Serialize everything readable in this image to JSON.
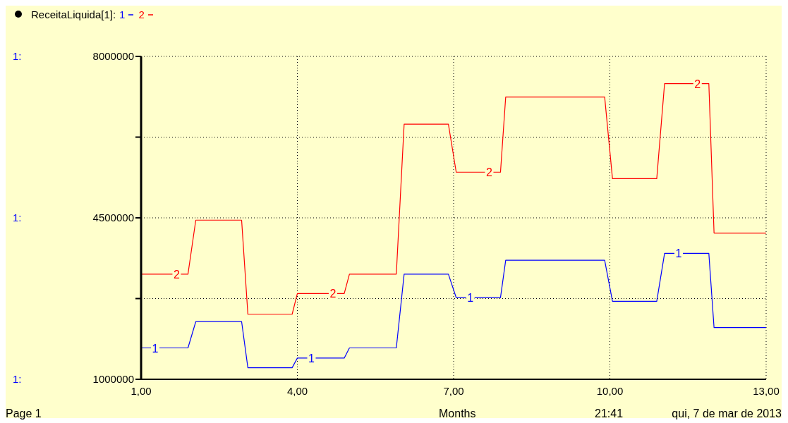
{
  "chart_data": {
    "type": "step",
    "title": "ReceitaLiquida[1]:",
    "xlabel": "Months",
    "series": [
      {
        "name": "1",
        "color": "#0000ff",
        "x": [
          1,
          1.9,
          2.05,
          2.93,
          3.05,
          3.9,
          4.0,
          4.9,
          5.0,
          5.9,
          6.05,
          6.9,
          7.05,
          7.9,
          8.0,
          9.9,
          10.05,
          10.9,
          11.05,
          11.9,
          12.0,
          13
        ],
        "values": [
          1680000,
          1680000,
          2250000,
          2250000,
          1250000,
          1250000,
          1460000,
          1460000,
          1680000,
          1680000,
          3280000,
          3280000,
          2770000,
          2770000,
          3580000,
          3580000,
          2690000,
          2690000,
          3730000,
          3730000,
          2120000,
          2120000
        ]
      },
      {
        "name": "2",
        "color": "#ff0000",
        "x": [
          1,
          1.9,
          2.05,
          2.93,
          3.05,
          3.9,
          4.0,
          4.9,
          5.0,
          5.9,
          6.05,
          6.9,
          7.05,
          7.9,
          8.0,
          9.9,
          10.05,
          10.9,
          11.05,
          11.9,
          12.0,
          13
        ],
        "values": [
          3280000,
          3280000,
          4450000,
          4450000,
          2410000,
          2410000,
          2860000,
          2860000,
          3280000,
          3280000,
          6530000,
          6530000,
          5490000,
          5490000,
          7120000,
          7120000,
          5350000,
          5350000,
          7410000,
          7410000,
          4170000,
          4170000
        ]
      }
    ],
    "xlim": [
      1,
      13
    ],
    "xticks": [
      {
        "value": 1,
        "label": "1,00"
      },
      {
        "value": 4,
        "label": "4,00"
      },
      {
        "value": 7,
        "label": "7,00"
      },
      {
        "value": 10,
        "label": "10,00"
      },
      {
        "value": 13,
        "label": "13,00"
      }
    ],
    "ylim": [
      1000000,
      8000000
    ],
    "yticks": [
      1000000,
      {
        "value": 2750000,
        "label": null
      },
      4500000,
      {
        "value": 6250000,
        "label": null
      },
      8000000
    ],
    "grid": true,
    "legend": "top left",
    "marker": "none",
    "line_style": "solid",
    "annotations": [
      "Page 1",
      "21:41",
      "qui, 7 de mar de 2013",
      "1:",
      "1:",
      "1:"
    ]
  }
}
